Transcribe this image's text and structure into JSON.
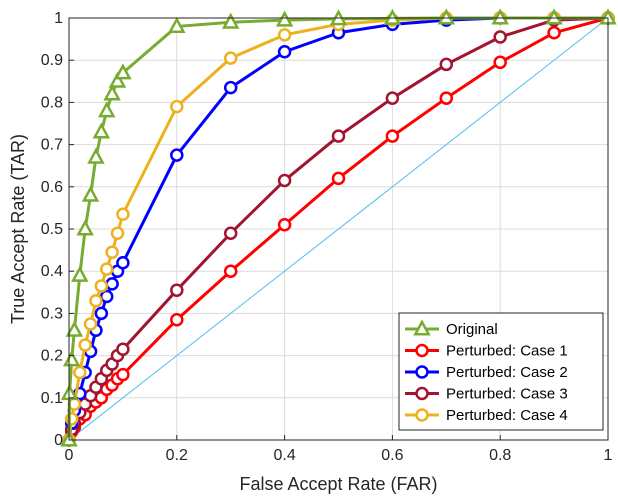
{
  "chart_data": {
    "type": "line",
    "title": "",
    "xlabel": "False Accept Rate (FAR)",
    "ylabel": "True Accept Rate (TAR)",
    "xlim": [
      0,
      1
    ],
    "ylim": [
      0,
      1
    ],
    "x_ticks": [
      "0",
      "0.2",
      "0.4",
      "0.6",
      "0.8",
      "1"
    ],
    "y_ticks": [
      "0",
      "0.1",
      "0.2",
      "0.3",
      "0.4",
      "0.5",
      "0.6",
      "0.7",
      "0.8",
      "0.9",
      "1"
    ],
    "grid": true,
    "legend_position": "bottom-right",
    "reference_line": {
      "x": [
        0,
        1
      ],
      "y": [
        0,
        1
      ],
      "color": "#4DBEEE"
    },
    "series": [
      {
        "name": "Original",
        "color": "#77AC30",
        "marker": "triangle",
        "x": [
          0,
          0.001,
          0.005,
          0.01,
          0.02,
          0.03,
          0.04,
          0.05,
          0.06,
          0.07,
          0.08,
          0.09,
          0.1,
          0.2,
          0.3,
          0.4,
          0.5,
          0.6,
          0.7,
          0.8,
          0.9,
          1.0
        ],
        "y": [
          0,
          0.11,
          0.19,
          0.26,
          0.39,
          0.5,
          0.58,
          0.67,
          0.73,
          0.78,
          0.82,
          0.85,
          0.87,
          0.98,
          0.99,
          0.995,
          0.998,
          0.999,
          1.0,
          1.0,
          1.0,
          1.0
        ]
      },
      {
        "name": "Perturbed: Case 1",
        "color": "#FF0000",
        "marker": "circle",
        "x": [
          0,
          0.005,
          0.01,
          0.02,
          0.03,
          0.04,
          0.05,
          0.06,
          0.07,
          0.08,
          0.09,
          0.1,
          0.2,
          0.3,
          0.4,
          0.5,
          0.6,
          0.7,
          0.8,
          0.9,
          1.0
        ],
        "y": [
          0,
          0.02,
          0.03,
          0.05,
          0.06,
          0.08,
          0.09,
          0.1,
          0.12,
          0.13,
          0.145,
          0.155,
          0.285,
          0.4,
          0.51,
          0.62,
          0.72,
          0.81,
          0.895,
          0.965,
          1.0
        ]
      },
      {
        "name": "Perturbed: Case 2",
        "color": "#0000FF",
        "marker": "circle",
        "x": [
          0,
          0.005,
          0.01,
          0.02,
          0.03,
          0.04,
          0.05,
          0.06,
          0.07,
          0.08,
          0.09,
          0.1,
          0.2,
          0.3,
          0.4,
          0.5,
          0.6,
          0.7,
          0.8,
          0.9,
          1.0
        ],
        "y": [
          0,
          0.04,
          0.07,
          0.11,
          0.16,
          0.21,
          0.26,
          0.3,
          0.34,
          0.37,
          0.4,
          0.42,
          0.675,
          0.835,
          0.92,
          0.965,
          0.985,
          0.995,
          1.0,
          1.0,
          1.0
        ]
      },
      {
        "name": "Perturbed: Case 3",
        "color": "#A2142F",
        "marker": "circle",
        "x": [
          0,
          0.005,
          0.01,
          0.02,
          0.03,
          0.04,
          0.05,
          0.06,
          0.07,
          0.08,
          0.09,
          0.1,
          0.2,
          0.3,
          0.4,
          0.5,
          0.6,
          0.7,
          0.8,
          0.9,
          1.0
        ],
        "y": [
          0,
          0.025,
          0.04,
          0.065,
          0.085,
          0.105,
          0.125,
          0.145,
          0.165,
          0.18,
          0.2,
          0.215,
          0.355,
          0.49,
          0.615,
          0.72,
          0.81,
          0.89,
          0.955,
          0.995,
          1.0
        ]
      },
      {
        "name": "Perturbed: Case 4",
        "color": "#EDB120",
        "marker": "circle",
        "x": [
          0,
          0.005,
          0.01,
          0.02,
          0.03,
          0.04,
          0.05,
          0.06,
          0.07,
          0.08,
          0.09,
          0.1,
          0.2,
          0.3,
          0.4,
          0.5,
          0.6,
          0.7,
          0.8,
          0.9,
          1.0
        ],
        "y": [
          0,
          0.05,
          0.085,
          0.16,
          0.225,
          0.275,
          0.33,
          0.365,
          0.405,
          0.445,
          0.49,
          0.535,
          0.79,
          0.905,
          0.96,
          0.985,
          0.995,
          1.0,
          1.0,
          1.0,
          1.0
        ]
      }
    ]
  }
}
